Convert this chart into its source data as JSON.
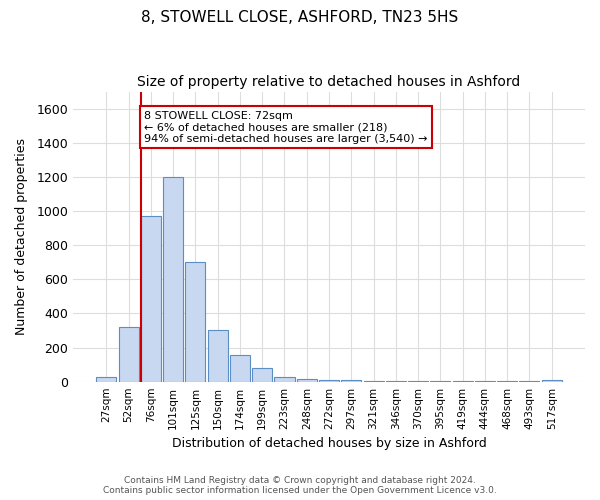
{
  "title1": "8, STOWELL CLOSE, ASHFORD, TN23 5HS",
  "title2": "Size of property relative to detached houses in Ashford",
  "xlabel": "Distribution of detached houses by size in Ashford",
  "ylabel": "Number of detached properties",
  "categories": [
    "27sqm",
    "52sqm",
    "76sqm",
    "101sqm",
    "125sqm",
    "150sqm",
    "174sqm",
    "199sqm",
    "223sqm",
    "248sqm",
    "272sqm",
    "297sqm",
    "321sqm",
    "346sqm",
    "370sqm",
    "395sqm",
    "419sqm",
    "444sqm",
    "468sqm",
    "493sqm",
    "517sqm"
  ],
  "values": [
    25,
    320,
    970,
    1200,
    700,
    305,
    155,
    80,
    25,
    15,
    10,
    10,
    5,
    5,
    2,
    5,
    2,
    2,
    2,
    2,
    10
  ],
  "bar_color": "#c8d8f0",
  "bar_edge_color": "#5b8ec4",
  "red_line_index": 2,
  "ylim": [
    0,
    1700
  ],
  "yticks": [
    0,
    200,
    400,
    600,
    800,
    1000,
    1200,
    1400,
    1600
  ],
  "annotation_line1": "8 STOWELL CLOSE: 72sqm",
  "annotation_line2": "← 6% of detached houses are smaller (218)",
  "annotation_line3": "94% of semi-detached houses are larger (3,540) →",
  "annotation_box_color": "#ffffff",
  "annotation_box_edge_color": "#cc0000",
  "footnote": "Contains HM Land Registry data © Crown copyright and database right 2024.\nContains public sector information licensed under the Open Government Licence v3.0.",
  "background_color": "#ffffff",
  "grid_color": "#dddddd",
  "title_fontsize": 11,
  "subtitle_fontsize": 10,
  "bar_width": 0.9
}
